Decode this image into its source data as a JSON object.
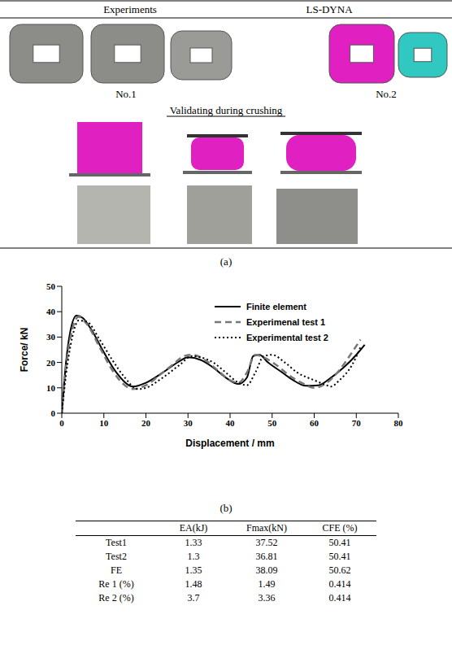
{
  "panel_a": {
    "header": [
      "Experiments",
      "LS-DYNA"
    ],
    "labels": [
      "No.1",
      "No.2"
    ],
    "subtitle": "Validating during crushing",
    "caption": "(a)"
  },
  "chart_data": {
    "type": "line",
    "caption": "(b)",
    "x_label": "Displacement / mm",
    "y_label": "Force/ kN",
    "xlim": [
      0,
      80
    ],
    "xticks": [
      0,
      10,
      20,
      30,
      40,
      50,
      60,
      70,
      80
    ],
    "ylim": [
      0,
      50
    ],
    "yticks": [
      0,
      10,
      20,
      30,
      40,
      50
    ],
    "legend": "upper right",
    "series": [
      {
        "name": "Finite element",
        "color": "#000000",
        "line_style": "solid",
        "x": [
          0,
          1,
          2,
          3.5,
          5,
          7,
          10,
          13,
          17,
          20,
          24,
          28,
          30,
          33,
          36,
          39,
          42,
          44,
          45.5,
          47,
          49,
          52,
          55,
          58,
          61,
          64,
          67,
          70,
          72
        ],
        "values": [
          0,
          20,
          32,
          38.5,
          37.5,
          33,
          24,
          16,
          10.5,
          12,
          16,
          20.5,
          22,
          21,
          18,
          14,
          11.5,
          14,
          22.5,
          23,
          20,
          16.5,
          13,
          10.8,
          11,
          14,
          18,
          23,
          27
        ]
      },
      {
        "name": "Experimenal test 1",
        "color": "#777777",
        "line_style": "dashed",
        "x": [
          0,
          1,
          2.5,
          4,
          6,
          9,
          12,
          15,
          17,
          20,
          24,
          27,
          29,
          31,
          34,
          37,
          40,
          42,
          44,
          46,
          48,
          51,
          54,
          57,
          60,
          63,
          66,
          69,
          71
        ],
        "values": [
          0,
          18,
          33,
          38,
          35,
          26,
          17,
          11,
          9.5,
          11,
          16,
          20,
          22.5,
          23,
          21,
          17,
          13,
          12,
          16,
          23,
          22,
          19,
          15,
          12,
          10,
          12,
          17,
          24,
          29
        ]
      },
      {
        "name": "Experimental test 2",
        "color": "#000000",
        "line_style": "dotted",
        "x": [
          0,
          1,
          2.5,
          4,
          6,
          9,
          12,
          15,
          18,
          20,
          24,
          28,
          31,
          33,
          36,
          39,
          42,
          44,
          46,
          48,
          50,
          53,
          56,
          60,
          63,
          64,
          66,
          69,
          71
        ],
        "values": [
          0,
          15,
          30,
          36.5,
          36,
          29,
          21,
          14,
          9.5,
          10,
          14,
          19,
          22.5,
          22,
          20,
          16,
          12,
          11,
          16,
          22.5,
          23,
          20,
          16,
          13,
          11,
          10.5,
          13,
          19,
          26
        ]
      }
    ]
  },
  "table": {
    "columns": [
      "EA(kJ)",
      "Fmax(kN)",
      "CFE (%)"
    ],
    "rows": [
      {
        "label": "Test1",
        "values": [
          1.33,
          37.52,
          50.41
        ]
      },
      {
        "label": "Test2",
        "values": [
          1.3,
          36.81,
          50.41
        ]
      },
      {
        "label": "FE",
        "values": [
          1.35,
          38.09,
          50.62
        ]
      },
      {
        "label": "Re 1 (%)",
        "values": [
          1.48,
          1.49,
          0.414
        ]
      },
      {
        "label": "Re 2 (%)",
        "values": [
          3.7,
          3.36,
          0.414
        ]
      }
    ]
  }
}
